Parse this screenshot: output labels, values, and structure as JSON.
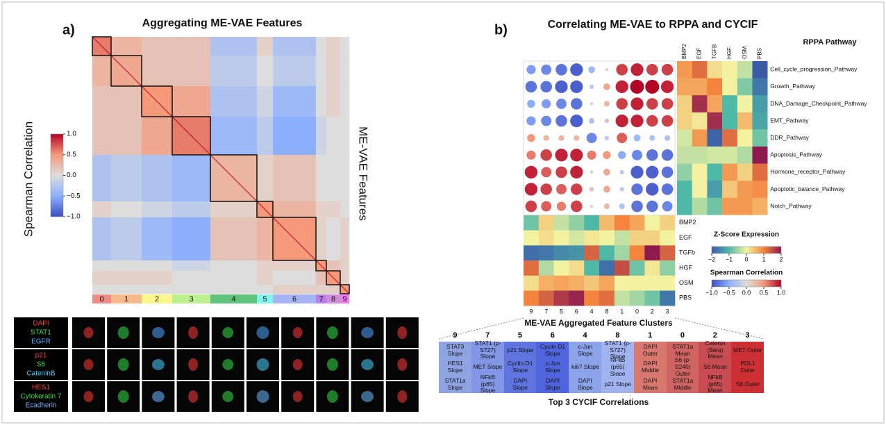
{
  "panel_a": {
    "label": "a)",
    "title": "Aggregating ME-VAE Features",
    "y_label": "ME-VAE Features",
    "colorbar": {
      "title": "Spearman Correlation",
      "lim": [
        -1,
        1
      ],
      "colormap": [
        "#3b4cc0",
        "#8db0fe",
        "#dddddd",
        "#f49a7b",
        "#b40426"
      ],
      "ticks": [
        {
          "value": 1,
          "label": "1.0"
        },
        {
          "value": 0.5,
          "label": "0.5"
        },
        {
          "value": 0,
          "label": "0.0"
        },
        {
          "value": -0.5,
          "label": "−0.5"
        },
        {
          "value": -1,
          "label": "−1.0"
        }
      ]
    },
    "clusters": {
      "names": [
        "0",
        "1",
        "2",
        "3",
        "4",
        "5",
        "6",
        "7",
        "8",
        "9"
      ],
      "sizes": [
        27,
        44,
        44,
        55,
        67,
        23,
        62,
        15,
        20,
        13
      ],
      "colors": [
        "#f08a84",
        "#f6b98a",
        "#fbf78a",
        "#bdf08f",
        "#5ec47c",
        "#86f4ee",
        "#a7b4f4",
        "#b77ee8",
        "#cf8fd8",
        "#f07af0"
      ]
    },
    "matrix": [
      [
        0.6,
        0.3,
        0.2,
        0.2,
        -0.3,
        0.1,
        -0.3,
        0.0,
        0.1,
        0.0
      ],
      [
        0.3,
        0.4,
        0.2,
        0.2,
        -0.2,
        0.0,
        -0.2,
        0.0,
        0.1,
        0.0
      ],
      [
        0.2,
        0.2,
        0.5,
        0.4,
        -0.3,
        -0.1,
        -0.4,
        0.0,
        0.1,
        0.0
      ],
      [
        0.2,
        0.2,
        0.4,
        0.6,
        -0.4,
        -0.2,
        -0.5,
        -0.1,
        0.0,
        0.0
      ],
      [
        -0.3,
        -0.2,
        -0.3,
        -0.4,
        0.3,
        0.1,
        0.2,
        0.0,
        0.0,
        0.0
      ],
      [
        0.1,
        0.0,
        -0.1,
        -0.2,
        0.1,
        0.5,
        0.3,
        0.1,
        0.1,
        0.0
      ],
      [
        -0.3,
        -0.2,
        -0.4,
        -0.5,
        0.2,
        0.3,
        0.5,
        0.1,
        0.0,
        0.1
      ],
      [
        0.0,
        0.0,
        0.0,
        -0.1,
        0.0,
        0.1,
        0.1,
        0.5,
        0.2,
        0.1
      ],
      [
        0.1,
        0.1,
        0.1,
        0.0,
        0.0,
        0.1,
        0.0,
        0.2,
        0.5,
        0.1
      ],
      [
        0.0,
        0.0,
        0.0,
        0.0,
        0.0,
        0.0,
        0.1,
        0.1,
        0.1,
        0.5
      ]
    ],
    "microscopy": {
      "rows": [
        {
          "channels": [
            {
              "text": "DAPI",
              "color": "#ff3b3b"
            },
            {
              "text": "STAT1",
              "color": "#33e04a"
            },
            {
              "text": "EGFR",
              "color": "#4aa8ff"
            }
          ]
        },
        {
          "channels": [
            {
              "text": "p21",
              "color": "#ff3b3b"
            },
            {
              "text": "S6",
              "color": "#33e04a"
            },
            {
              "text": "CateninB",
              "color": "#4ad0ff"
            }
          ]
        },
        {
          "channels": [
            {
              "text": "HES1",
              "color": "#ff3b3b"
            },
            {
              "text": "Cytokeratin 7",
              "color": "#33e04a"
            },
            {
              "text": "Ecadherin",
              "color": "#6ab8ff"
            }
          ]
        }
      ]
    }
  },
  "panel_b": {
    "label": "b)",
    "title": "Correlating ME-VAE to RPPA and CYCIF",
    "rppa_title": "RPPA Pathway",
    "pathways": [
      "Cell_cycle_progression_Pathway",
      "Growth_Pathway",
      "DNA_Damage_Checkpoint_Pathway",
      "EMT_Pathway",
      "DDR_Pathway",
      "Apoptosis_Pathway",
      "Hormone_receptor_Pathway",
      "Apoptotic_balance_Pathway",
      "Notch_Pathway"
    ],
    "treatments": [
      "BMP2",
      "EGF",
      "TGFB",
      "HGF",
      "OSM",
      "PBS"
    ],
    "treatment_row_labels": [
      "BMP2",
      "EGF",
      "TGFb",
      "HGF",
      "OSM",
      "PBS"
    ],
    "cluster_order": [
      "9",
      "7",
      "5",
      "6",
      "4",
      "8",
      "1",
      "0",
      "2",
      "3"
    ],
    "correlations": [
      [
        -0.6,
        -0.7,
        -0.8,
        -0.9,
        -0.4,
        -0.1,
        0.8,
        0.9,
        0.8,
        0.8
      ],
      [
        -0.8,
        -0.8,
        -0.9,
        -0.9,
        -0.2,
        0.4,
        0.9,
        1.0,
        1.0,
        0.9
      ],
      [
        -0.5,
        -0.6,
        -0.7,
        -0.8,
        -0.1,
        0.3,
        0.8,
        0.9,
        0.8,
        0.8
      ],
      [
        -0.6,
        -0.7,
        -0.8,
        -0.9,
        -0.3,
        0.2,
        0.9,
        0.9,
        0.8,
        0.8
      ],
      [
        0.5,
        0.3,
        0.3,
        0.3,
        -0.7,
        -0.2,
        0.7,
        -0.4,
        -0.3,
        -0.3
      ],
      [
        0.6,
        0.8,
        0.9,
        0.9,
        0.6,
        0.5,
        -0.5,
        -0.7,
        -0.8,
        -0.8
      ],
      [
        0.9,
        0.7,
        0.8,
        0.9,
        0.1,
        0.4,
        -0.2,
        -0.9,
        -0.9,
        -0.8
      ],
      [
        0.9,
        0.8,
        0.7,
        0.8,
        0.2,
        0.4,
        -0.2,
        -0.8,
        -0.9,
        -0.8
      ],
      [
        0.8,
        0.7,
        0.6,
        0.8,
        0.1,
        0.3,
        -0.3,
        -0.8,
        -0.8,
        -0.7
      ]
    ],
    "rppa_z": [
      [
        0.8,
        1.2,
        0.2,
        0.0,
        -0.3,
        -2.0
      ],
      [
        0.7,
        0.7,
        1.0,
        0.0,
        -0.7,
        -1.7
      ],
      [
        0.3,
        1.8,
        0.7,
        -1.0,
        0.0,
        -1.3
      ],
      [
        0.3,
        0.1,
        1.8,
        -1.0,
        0.5,
        -1.2
      ],
      [
        -0.2,
        0.8,
        -1.9,
        1.2,
        0.0,
        -0.8
      ],
      [
        -0.3,
        -0.3,
        -0.2,
        -0.2,
        -0.4,
        2.0
      ],
      [
        -0.6,
        0.0,
        -1.0,
        0.8,
        0.3,
        1.2
      ],
      [
        -1.0,
        0.0,
        -1.3,
        0.4,
        0.8,
        0.9
      ],
      [
        -1.0,
        -0.4,
        -0.8,
        0.8,
        0.8,
        0.6
      ]
    ],
    "cluster_z": [
      [
        -0.8,
        0.3,
        -0.3,
        -0.6,
        -1.0,
        0.5,
        1.0,
        0.7,
        0.0,
        0.3
      ],
      [
        0.0,
        0.2,
        0.0,
        -0.2,
        0.1,
        0.0,
        -0.3,
        0.3,
        0.3,
        0.0
      ],
      [
        -1.8,
        -1.7,
        -1.5,
        -1.4,
        1.3,
        -1.0,
        -0.5,
        1.0,
        2.0,
        1.3
      ],
      [
        1.2,
        -0.4,
        0.0,
        0.2,
        -1.0,
        -1.8,
        1.5,
        -0.8,
        0.1,
        -0.6
      ],
      [
        0.2,
        0.6,
        0.7,
        0.6,
        0.4,
        0.7,
        0.0,
        0.0,
        0.0,
        0.0
      ],
      [
        1.0,
        1.3,
        1.7,
        1.9,
        1.0,
        1.2,
        -0.3,
        -0.5,
        -0.8,
        -1.7
      ]
    ],
    "z_colorbar": {
      "title": "Z-Score Expression",
      "lim": [
        -2,
        2
      ],
      "colormap": [
        "#3b5ba9",
        "#4fb9a8",
        "#f3f2a0",
        "#f4833e",
        "#8e1a4e"
      ],
      "ticks": [
        {
          "value": -2,
          "label": "−2"
        },
        {
          "value": -1,
          "label": "−1"
        },
        0,
        1,
        2
      ]
    },
    "spearman_colorbar": {
      "title": "Spearman Correlation",
      "lim": [
        -1,
        1
      ],
      "colormap": [
        "#3b4cc0",
        "#8db0fe",
        "#dddddd",
        "#f49a7b",
        "#b40426"
      ],
      "ticks": [
        {
          "value": -1,
          "label": "−1.0"
        },
        {
          "value": -0.5,
          "label": "−0.5"
        },
        {
          "value": 0,
          "label": "0.0"
        },
        {
          "value": 0.5,
          "label": "0.5"
        },
        {
          "value": 1,
          "label": "1.0"
        }
      ]
    },
    "clusters_title": "ME-VAE Aggregated Feature Clusters",
    "table": {
      "title": "Top 3 CYCIF Correlations",
      "columns": [
        {
          "header": "9",
          "color": "#8fa3e3",
          "cells": [
            "STAT3 Slope",
            "HES1 Slope",
            "STAT1a Slope"
          ]
        },
        {
          "header": "7",
          "color": "#8396e6",
          "cells": [
            "STAT1 (p-S727) Slope",
            "MET Slope",
            "NFkB (p65) Slope"
          ]
        },
        {
          "header": "5",
          "color": "#6074e0",
          "cells": [
            "p21 Slope",
            "Cyclin D1 Slope",
            "DAPI Slope"
          ]
        },
        {
          "header": "6",
          "color": "#5064dd",
          "cells": [
            "Cyclin D1 Slope",
            "c-Jun Slope",
            "DAPI Slope"
          ]
        },
        {
          "header": "4",
          "color": "#8ca2e9",
          "cells": [
            "c-Jun Slope",
            "ki67 Slope",
            "DAPI Slope"
          ]
        },
        {
          "header": "8",
          "color": "#a0b2ef",
          "cells": [
            "STAT1 (p-S727) Slope",
            "NFkB (p65) Slope",
            "p21 Slope"
          ]
        },
        {
          "header": "1",
          "color": "#d9786f",
          "cells": [
            "DAPI Outer",
            "DAPI Middle",
            "DAPI Mean"
          ]
        },
        {
          "header": "0",
          "color": "#d06462",
          "cells": [
            "STAT1a Mean",
            "S6 (p-S240) Outer",
            "STAT1a Middle"
          ]
        },
        {
          "header": "2",
          "color": "#c84c52",
          "cells": [
            "Catenin (Beta) Mean",
            "S6 Mean",
            "NFkB (p65) Mean"
          ]
        },
        {
          "header": "3",
          "color": "#cc3035",
          "cells": [
            "MET Outer",
            "PDL1 Outer",
            "S6 Outer"
          ]
        }
      ]
    }
  }
}
